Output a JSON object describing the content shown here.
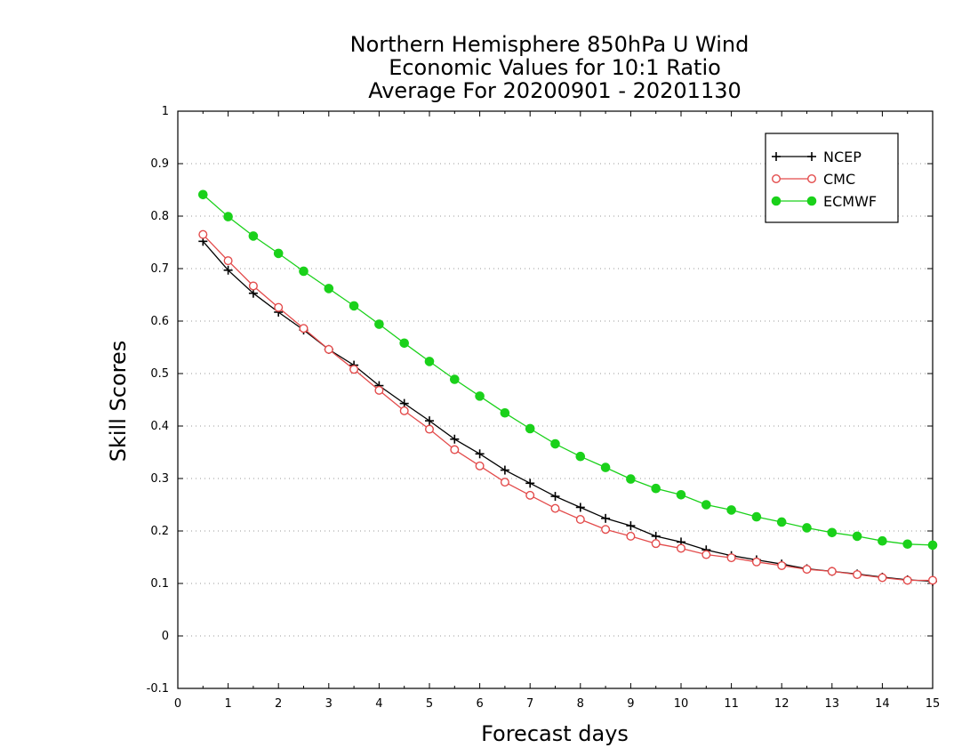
{
  "chart_data": {
    "type": "line",
    "title": [
      "Northern Hemisphere 850hPa U Wind",
      "Economic Values for 10:1 Ratio",
      "Average For 20200901 - 20201130"
    ],
    "xlabel": "Forecast days",
    "ylabel": "Skill Scores",
    "xlim": [
      0,
      15
    ],
    "ylim": [
      -0.1,
      1
    ],
    "xticks": [
      0,
      1,
      2,
      3,
      4,
      5,
      6,
      7,
      8,
      9,
      10,
      11,
      12,
      13,
      14,
      15
    ],
    "yticks": [
      -0.1,
      0,
      0.1,
      0.2,
      0.3,
      0.4,
      0.5,
      0.6,
      0.7,
      0.8,
      0.9,
      1
    ],
    "ytick_labels": [
      "-0.1",
      "0",
      "0.1",
      "0.2",
      "0.3",
      "0.4",
      "0.5",
      "0.6",
      "0.7",
      "0.8",
      "0.9",
      "1"
    ],
    "grid": "horizontal dotted",
    "legend_position": "top-right",
    "x": [
      0.5,
      1,
      1.5,
      2,
      2.5,
      3,
      3.5,
      4,
      4.5,
      5,
      5.5,
      6,
      6.5,
      7,
      7.5,
      8,
      8.5,
      9,
      9.5,
      10,
      10.5,
      11,
      11.5,
      12,
      12.5,
      13,
      13.5,
      14,
      14.5,
      15
    ],
    "series": [
      {
        "name": "NCEP",
        "color": "#000000",
        "marker": "plus",
        "values": [
          0.752,
          0.697,
          0.653,
          0.617,
          0.583,
          0.546,
          0.516,
          0.477,
          0.443,
          0.41,
          0.375,
          0.347,
          0.316,
          0.291,
          0.266,
          0.245,
          0.224,
          0.21,
          0.19,
          0.179,
          0.164,
          0.153,
          0.145,
          0.137,
          0.128,
          0.123,
          0.118,
          0.112,
          0.107,
          0.104
        ]
      },
      {
        "name": "CMC",
        "color": "#e34b4b",
        "marker": "open-circle",
        "values": [
          0.765,
          0.715,
          0.667,
          0.626,
          0.586,
          0.546,
          0.508,
          0.468,
          0.429,
          0.394,
          0.355,
          0.324,
          0.293,
          0.268,
          0.243,
          0.222,
          0.203,
          0.19,
          0.176,
          0.167,
          0.155,
          0.149,
          0.141,
          0.134,
          0.127,
          0.123,
          0.117,
          0.111,
          0.106,
          0.106
        ]
      },
      {
        "name": "ECMWF",
        "color": "#1ad11a",
        "marker": "filled-circle",
        "values": [
          0.841,
          0.799,
          0.762,
          0.729,
          0.695,
          0.662,
          0.629,
          0.594,
          0.558,
          0.523,
          0.489,
          0.457,
          0.425,
          0.395,
          0.366,
          0.342,
          0.321,
          0.299,
          0.281,
          0.269,
          0.25,
          0.24,
          0.227,
          0.217,
          0.206,
          0.197,
          0.19,
          0.181,
          0.175,
          0.173
        ]
      }
    ]
  }
}
